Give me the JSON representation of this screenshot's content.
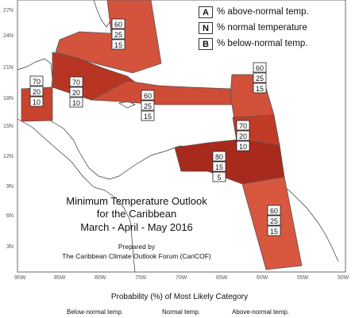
{
  "title": {
    "line1": "Minimum Temperature Outlook",
    "line2": "for the Caribbean",
    "line3": "March - April - May 2016"
  },
  "credit": {
    "line1": "Prepared by",
    "line2": "The Caribbean Climate Outlook Forum (CariCOF)"
  },
  "legend": {
    "items": [
      {
        "key": "A",
        "label": "% above-normal temp."
      },
      {
        "key": "N",
        "label": "% normal temperature"
      },
      {
        "key": "B",
        "label": "% below-normal temp."
      }
    ]
  },
  "axes": {
    "lat_ticks": [
      "27N",
      "24N",
      "21N",
      "18N",
      "15N",
      "12N",
      "9N",
      "6N",
      "3N"
    ],
    "lon_ticks": [
      "90W",
      "85W",
      "80W",
      "75W",
      "70W",
      "65W",
      "60W",
      "55W",
      "50W"
    ]
  },
  "regions": [
    {
      "id": "bahamas",
      "above": "60",
      "normal": "25",
      "below": "15",
      "color": "#d4533c"
    },
    {
      "id": "belize-honduras",
      "above": "70",
      "normal": "20",
      "below": "10",
      "color": "#c8432e"
    },
    {
      "id": "cuba",
      "above": "70",
      "normal": "20",
      "below": "10",
      "color": "#b93523"
    },
    {
      "id": "hispaniola",
      "above": "60",
      "normal": "25",
      "below": "15",
      "color": "#cf4c36"
    },
    {
      "id": "leeward",
      "above": "60",
      "normal": "25",
      "below": "15",
      "color": "#d0503a"
    },
    {
      "id": "windward",
      "above": "70",
      "normal": "20",
      "below": "10",
      "color": "#c13b27"
    },
    {
      "id": "south-caribbean",
      "above": "80",
      "normal": "15",
      "below": "5",
      "color": "#a82a1c"
    },
    {
      "id": "guianas",
      "above": "60",
      "normal": "25",
      "below": "15",
      "color": "#d8573f"
    }
  ],
  "footer": {
    "caption": "Probability (%) of Most Likely Category",
    "categories": [
      "Below-normal temp.",
      "Normal temp.",
      "Above-normal temp."
    ]
  }
}
